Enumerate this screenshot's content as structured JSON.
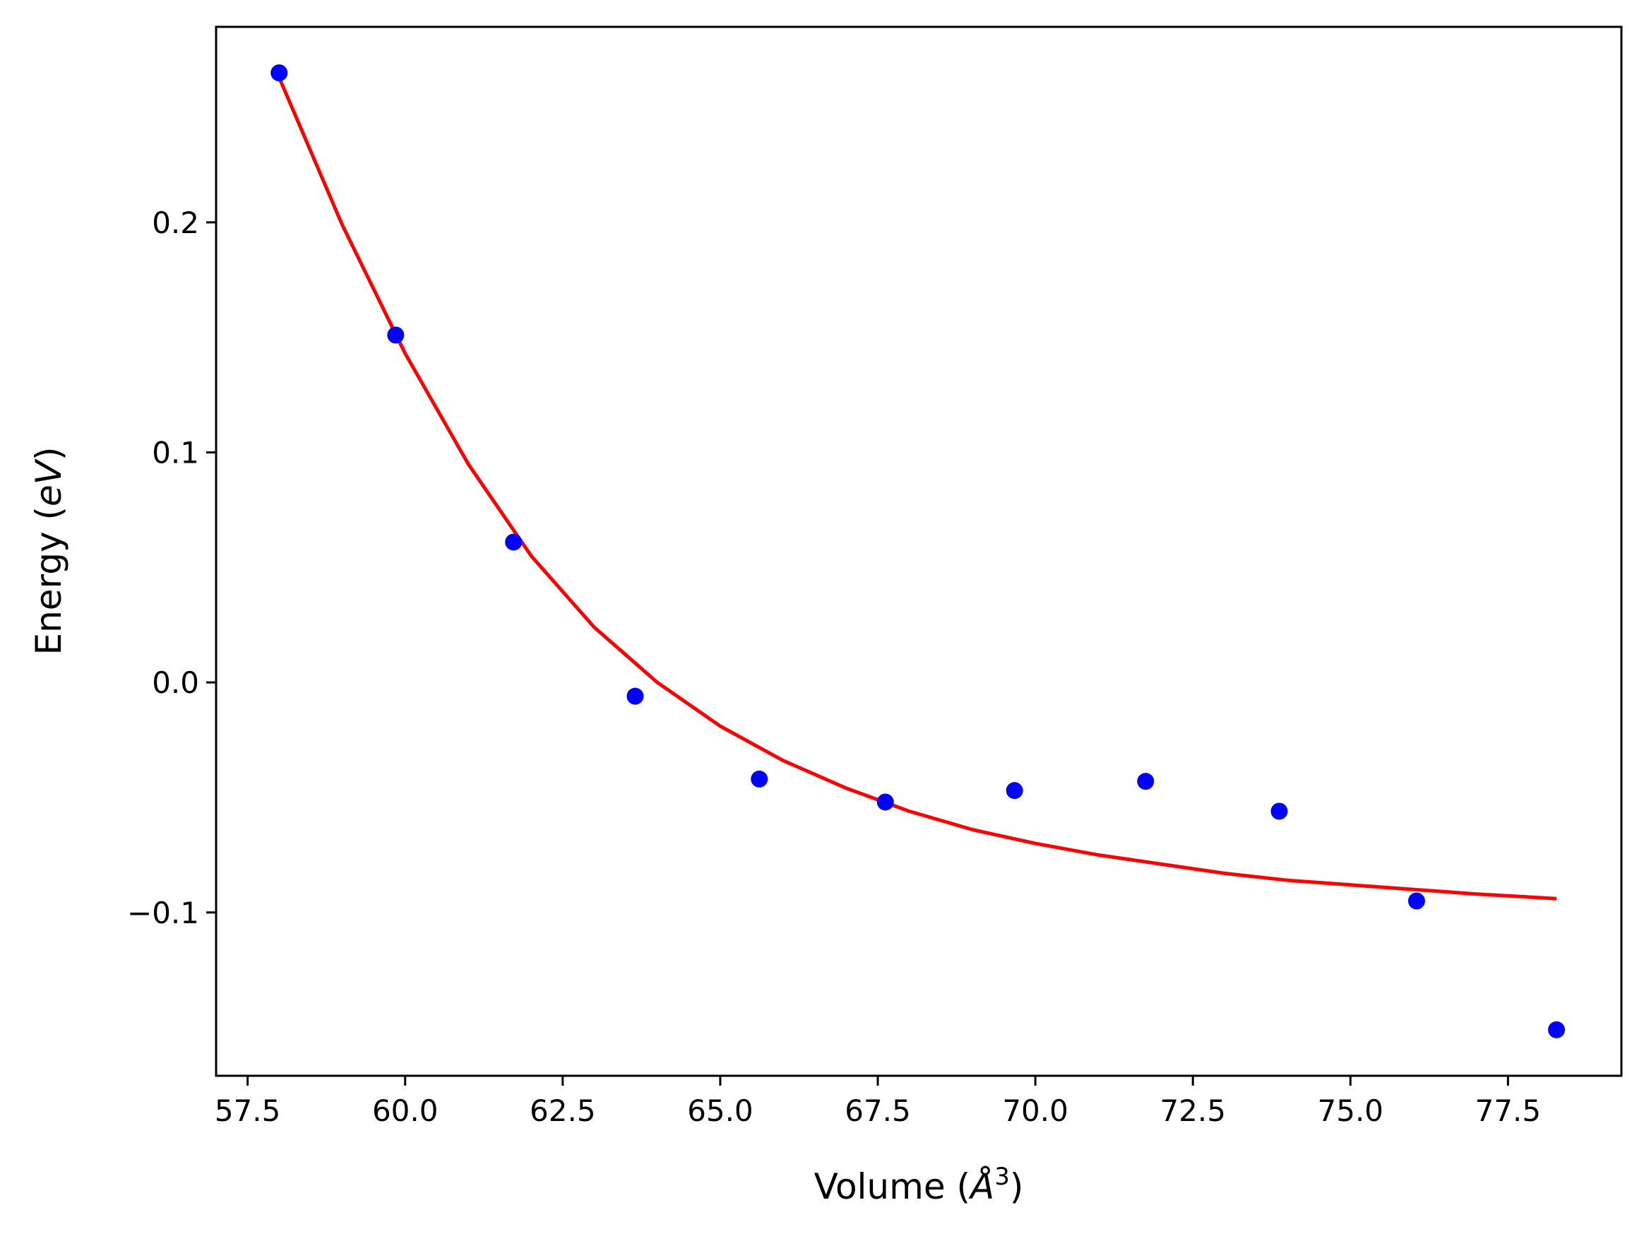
{
  "chart_data": {
    "type": "scatter",
    "title": "",
    "xlabel": "Volume (",
    "xlabel_symbol": "Å",
    "xlabel_exponent": "3",
    "xlabel_close": ")",
    "ylabel": "Energy (",
    "ylabel_unit": "eV",
    "ylabel_close": ")",
    "xlim": [
      57.0,
      79.3
    ],
    "ylim": [
      -0.171,
      0.285
    ],
    "grid": false,
    "legend": "none",
    "xticks": [
      {
        "value": 57.5,
        "label": "57.5"
      },
      {
        "value": 60.0,
        "label": "60.0"
      },
      {
        "value": 62.5,
        "label": "62.5"
      },
      {
        "value": 65.0,
        "label": "65.0"
      },
      {
        "value": 67.5,
        "label": "67.5"
      },
      {
        "value": 70.0,
        "label": "70.0"
      },
      {
        "value": 72.5,
        "label": "72.5"
      },
      {
        "value": 75.0,
        "label": "75.0"
      },
      {
        "value": 77.5,
        "label": "77.5"
      }
    ],
    "yticks": [
      {
        "value": -0.1,
        "label": "−0.1"
      },
      {
        "value": 0.0,
        "label": "0.0"
      },
      {
        "value": 0.1,
        "label": "0.1"
      },
      {
        "value": 0.2,
        "label": "0.2"
      }
    ],
    "series": [
      {
        "name": "data",
        "kind": "scatter",
        "color": "#0000ff",
        "x": [
          58.0,
          59.85,
          61.72,
          63.65,
          65.62,
          67.62,
          69.67,
          71.75,
          73.87,
          76.05,
          78.27
        ],
        "y": [
          0.265,
          0.151,
          0.061,
          -0.006,
          -0.042,
          -0.052,
          -0.047,
          -0.043,
          -0.056,
          -0.095,
          -0.151
        ]
      },
      {
        "name": "fit",
        "kind": "line",
        "color": "#ff0000",
        "x": [
          58.0,
          59.0,
          60.0,
          61.0,
          62.0,
          63.0,
          64.0,
          65.0,
          66.0,
          67.0,
          68.0,
          69.0,
          70.0,
          71.0,
          72.0,
          73.0,
          74.0,
          75.0,
          76.0,
          77.0,
          78.27
        ],
        "y": [
          0.263,
          0.199,
          0.143,
          0.095,
          0.055,
          0.024,
          0.0,
          -0.019,
          -0.034,
          -0.046,
          -0.056,
          -0.064,
          -0.07,
          -0.075,
          -0.079,
          -0.083,
          -0.086,
          -0.088,
          -0.09,
          -0.092,
          -0.094
        ]
      }
    ]
  }
}
